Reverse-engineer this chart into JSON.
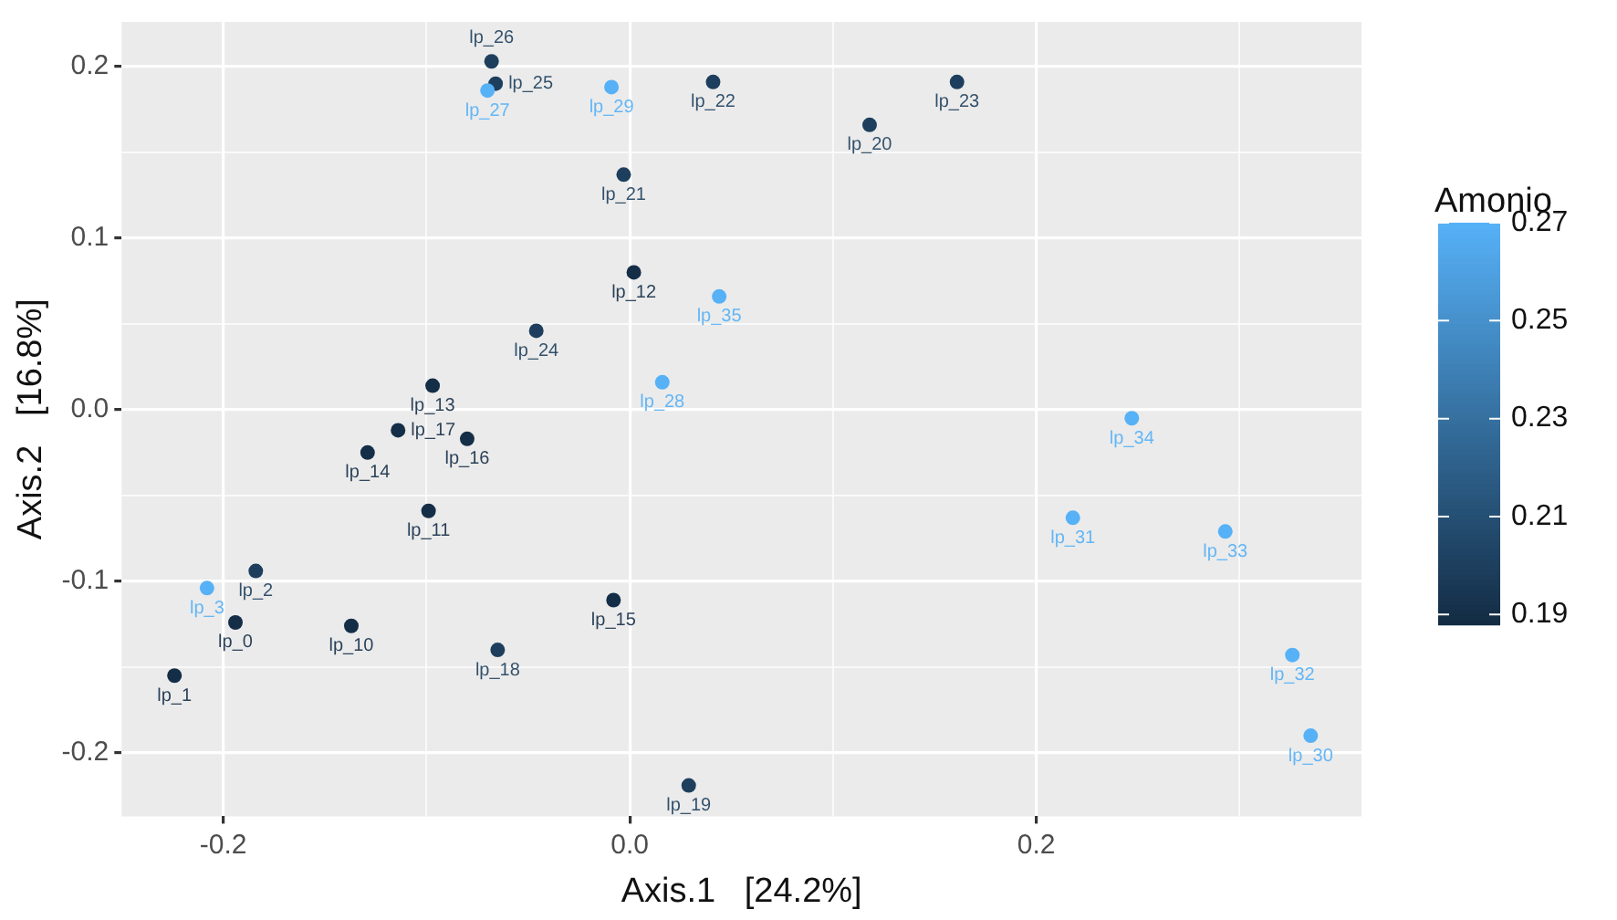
{
  "chart_data": {
    "type": "scatter",
    "xlabel": "Axis.1   [24.2%]",
    "ylabel": "Axis.2   [16.8%]",
    "clabel": "Amonio",
    "xlim": [
      -0.25,
      0.36
    ],
    "ylim": [
      -0.237,
      0.226
    ],
    "xticks": [
      {
        "value": -0.2,
        "label": "-0.2"
      },
      {
        "value": -0.1,
        "label": null
      },
      {
        "value": 0,
        "label": "0.0"
      },
      {
        "value": 0.1,
        "label": null
      },
      {
        "value": 0.2,
        "label": "0.2"
      },
      {
        "value": 0.3,
        "label": null
      }
    ],
    "yticks": [
      {
        "value": -0.2,
        "label": "-0.2"
      },
      {
        "value": -0.15,
        "label": null
      },
      {
        "value": -0.1,
        "label": "-0.1"
      },
      {
        "value": -0.05,
        "label": null
      },
      {
        "value": 0,
        "label": "0.0"
      },
      {
        "value": 0.05,
        "label": null
      },
      {
        "value": 0.1,
        "label": "0.1"
      },
      {
        "value": 0.15,
        "label": null
      },
      {
        "value": 0.2,
        "label": "0.2"
      }
    ],
    "clim": [
      0.188,
      0.27
    ],
    "cticks": [
      0.19,
      0.21,
      0.23,
      0.25,
      0.27
    ],
    "grid": true,
    "marker": "circle",
    "x": [
      -0.068,
      -0.066,
      -0.07,
      -0.009,
      0.041,
      0.118,
      0.161,
      -0.003,
      0.002,
      0.044,
      -0.046,
      0.016,
      -0.097,
      -0.114,
      -0.08,
      -0.129,
      -0.099,
      -0.184,
      -0.208,
      -0.194,
      -0.137,
      -0.224,
      -0.065,
      -0.008,
      0.029,
      0.247,
      0.218,
      0.293,
      0.326,
      0.335
    ],
    "values": [
      0.203,
      0.19,
      0.186,
      0.188,
      0.191,
      0.166,
      0.191,
      0.137,
      0.08,
      0.066,
      0.046,
      0.016,
      0.014,
      -0.012,
      -0.017,
      -0.025,
      -0.059,
      -0.094,
      -0.104,
      -0.124,
      -0.126,
      -0.155,
      -0.14,
      -0.111,
      -0.219,
      -0.005,
      -0.063,
      -0.071,
      -0.143,
      -0.19
    ],
    "cvalues": [
      0.2,
      0.2,
      0.27,
      0.27,
      0.2,
      0.2,
      0.2,
      0.2,
      0.19,
      0.27,
      0.2,
      0.27,
      0.19,
      0.19,
      0.19,
      0.19,
      0.19,
      0.2,
      0.27,
      0.19,
      0.19,
      0.19,
      0.2,
      0.19,
      0.2,
      0.27,
      0.27,
      0.27,
      0.27,
      0.27
    ],
    "annotations": [
      {
        "text": "lp_26",
        "x": -0.068,
        "y": 0.203
      },
      {
        "text": "lp_25",
        "x": -0.066,
        "y": 0.19
      },
      {
        "text": "lp_27",
        "x": -0.07,
        "y": 0.186
      },
      {
        "text": "lp_29",
        "x": -0.009,
        "y": 0.188
      },
      {
        "text": "lp_22",
        "x": 0.041,
        "y": 0.191
      },
      {
        "text": "lp_20",
        "x": 0.118,
        "y": 0.166
      },
      {
        "text": "lp_23",
        "x": 0.161,
        "y": 0.191
      },
      {
        "text": "lp_21",
        "x": -0.003,
        "y": 0.137
      },
      {
        "text": "lp_12",
        "x": 0.002,
        "y": 0.08
      },
      {
        "text": "lp_35",
        "x": 0.044,
        "y": 0.066
      },
      {
        "text": "lp_24",
        "x": -0.046,
        "y": 0.046
      },
      {
        "text": "lp_28",
        "x": 0.016,
        "y": 0.016
      },
      {
        "text": "lp_13",
        "x": -0.097,
        "y": 0.014
      },
      {
        "text": "lp_17",
        "x": -0.114,
        "y": -0.012
      },
      {
        "text": "lp_16",
        "x": -0.08,
        "y": -0.017
      },
      {
        "text": "lp_14",
        "x": -0.129,
        "y": -0.025
      },
      {
        "text": "lp_11",
        "x": -0.099,
        "y": -0.059
      },
      {
        "text": "lp_2",
        "x": -0.184,
        "y": -0.094
      },
      {
        "text": "lp_3",
        "x": -0.208,
        "y": -0.104
      },
      {
        "text": "lp_0",
        "x": -0.194,
        "y": -0.124
      },
      {
        "text": "lp_10",
        "x": -0.137,
        "y": -0.126
      },
      {
        "text": "lp_1",
        "x": -0.224,
        "y": -0.155
      },
      {
        "text": "lp_18",
        "x": -0.065,
        "y": -0.14
      },
      {
        "text": "lp_15",
        "x": -0.008,
        "y": -0.111
      },
      {
        "text": "lp_19",
        "x": 0.029,
        "y": -0.219
      },
      {
        "text": "lp_34",
        "x": 0.247,
        "y": -0.005
      },
      {
        "text": "lp_31",
        "x": 0.218,
        "y": -0.063
      },
      {
        "text": "lp_33",
        "x": 0.293,
        "y": -0.071
      },
      {
        "text": "lp_32",
        "x": 0.326,
        "y": -0.143
      },
      {
        "text": "lp_30",
        "x": 0.335,
        "y": -0.19
      }
    ]
  }
}
